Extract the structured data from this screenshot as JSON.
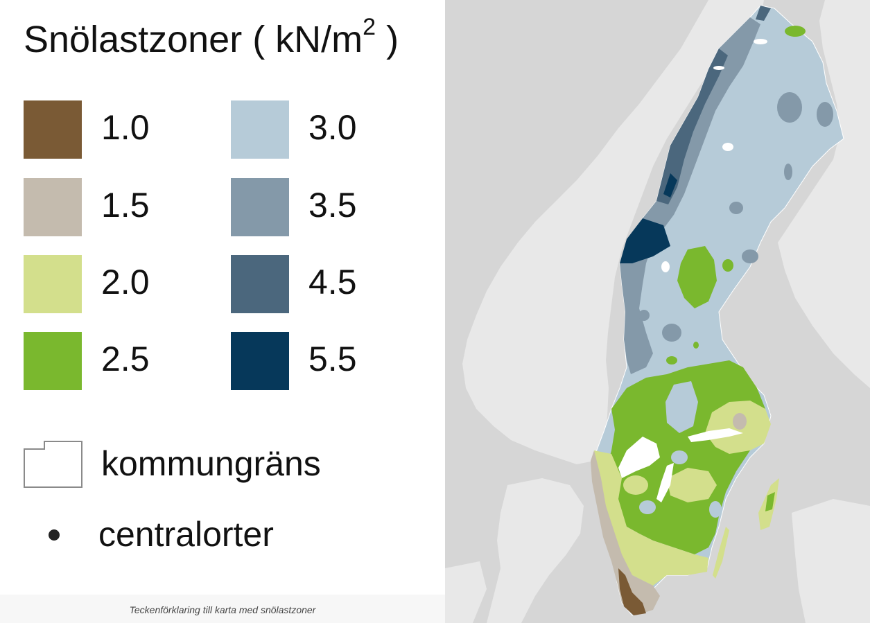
{
  "legend": {
    "title_prefix": "Snölastzoner ( kN/m",
    "title_exponent": "2",
    "title_suffix": " )",
    "zones": [
      {
        "label": "1.0",
        "color": "#7a5a35"
      },
      {
        "label": "1.5",
        "color": "#c4bbae"
      },
      {
        "label": "2.0",
        "color": "#d3df8c"
      },
      {
        "label": "2.5",
        "color": "#7ab82e"
      },
      {
        "label": "3.0",
        "color": "#b6cbd8"
      },
      {
        "label": "3.5",
        "color": "#8499a9"
      },
      {
        "label": "4.5",
        "color": "#4b677d"
      },
      {
        "label": "5.5",
        "color": "#06385a"
      }
    ],
    "boundary_label": "kommungräns",
    "town_label": "centralorter"
  },
  "caption": "Teckenförklaring till karta med snölastzoner",
  "map": {
    "sea_color": "#d6d6d6",
    "land_color": "#e8e8e8",
    "lake_color": "#ffffff"
  }
}
